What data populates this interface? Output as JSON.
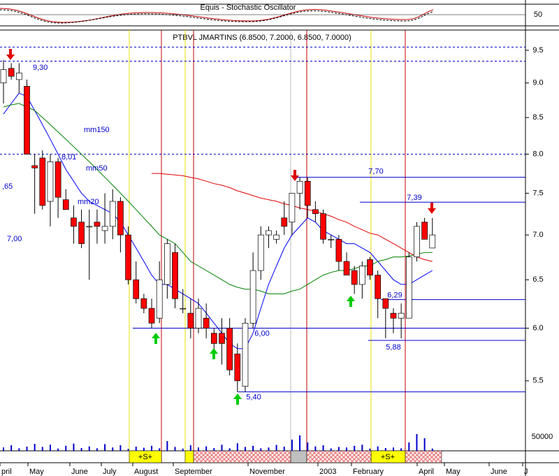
{
  "chart_data": {
    "type": "candlestick",
    "log": true,
    "title": "PTBVL JMARTINS (6.8500, 7.2000, 6.8500, 7.0000)",
    "top_title": "Equis - Stochastic Oscillator",
    "top_tick": "50",
    "ylim": [
      5.16,
      9.8
    ],
    "yticks": [
      5.5,
      {
        "value": 6,
        "label": "6.0"
      },
      6.5,
      {
        "value": 7,
        "label": "7.0"
      },
      7.5,
      {
        "value": 8,
        "label": "8.0"
      },
      8.5,
      {
        "value": 9,
        "label": "9.0"
      },
      9.5
    ],
    "open": [
      9.0,
      9.22,
      9.05,
      8.95,
      7.85,
      7.95,
      7.4,
      7.9,
      7.42,
      7.2,
      7.15,
      7.1,
      7.15,
      7.05,
      7.1,
      7.4,
      7.0,
      6.5,
      6.3,
      6.2,
      6.1,
      6.45,
      6.8,
      6.2,
      6.15,
      6.0,
      6.1,
      5.95,
      5.95,
      6.0,
      5.75,
      5.45,
      6.05,
      6.6,
      7.0,
      6.95,
      7.2,
      7.15,
      7.5,
      7.65,
      7.3,
      7.25,
      6.95,
      6.95,
      6.7,
      6.6,
      6.45,
      6.72,
      6.55,
      6.3,
      6.15,
      6.1,
      6.1,
      6.75,
      7.15,
      6.85
    ],
    "high": [
      9.35,
      9.3,
      9.3,
      9.05,
      8.0,
      8.05,
      8.0,
      7.95,
      7.55,
      7.35,
      7.3,
      7.3,
      7.3,
      7.5,
      7.55,
      7.45,
      7.1,
      6.7,
      6.35,
      6.3,
      6.7,
      6.95,
      6.9,
      6.4,
      6.3,
      6.3,
      6.25,
      6.0,
      6.1,
      6.1,
      5.85,
      6.1,
      6.8,
      7.1,
      7.1,
      7.05,
      7.4,
      7.5,
      7.7,
      7.7,
      7.4,
      7.3,
      7.0,
      7.0,
      6.8,
      6.65,
      6.7,
      6.75,
      6.6,
      6.3,
      6.2,
      6.25,
      6.8,
      7.15,
      7.2,
      7.2
    ],
    "low": [
      8.7,
      9.05,
      8.85,
      8.0,
      7.25,
      7.3,
      7.1,
      7.2,
      7.3,
      6.9,
      6.85,
      6.5,
      6.9,
      6.9,
      6.95,
      6.8,
      6.45,
      6.25,
      6.15,
      6.0,
      6.05,
      6.3,
      6.2,
      6.15,
      5.9,
      5.95,
      5.9,
      5.8,
      5.65,
      5.55,
      5.4,
      5.4,
      6.0,
      6.5,
      6.85,
      6.9,
      7.0,
      7.0,
      7.3,
      7.2,
      7.15,
      6.9,
      6.85,
      6.6,
      6.55,
      6.35,
      6.3,
      6.5,
      6.1,
      5.9,
      5.95,
      5.9,
      6.1,
      6.7,
      6.95,
      6.85
    ],
    "close": [
      9.2,
      9.1,
      9.15,
      8.0,
      7.82,
      7.35,
      7.9,
      7.45,
      7.3,
      7.1,
      6.9,
      7.1,
      7.1,
      7.1,
      7.4,
      7.0,
      6.5,
      6.3,
      6.2,
      6.05,
      6.5,
      6.9,
      6.3,
      6.2,
      6.0,
      6.2,
      6.0,
      5.85,
      5.85,
      5.6,
      5.5,
      6.05,
      6.6,
      7.0,
      7.05,
      7.0,
      7.1,
      7.5,
      7.65,
      7.35,
      7.25,
      6.95,
      6.95,
      6.7,
      6.55,
      6.45,
      6.65,
      6.55,
      6.3,
      6.2,
      6.1,
      6.15,
      6.75,
      7.1,
      6.95,
      7.0
    ],
    "up_color": "#ffffff",
    "down_color": "#ff0000",
    "series": [
      {
        "name": "mm20",
        "color": "#0000ff",
        "values": [
          8.55,
          8.7,
          8.85,
          8.8,
          8.6,
          8.4,
          8.2,
          8.0,
          7.8,
          7.65,
          7.5,
          7.4,
          7.35,
          7.3,
          7.25,
          7.15,
          7.0,
          6.85,
          6.7,
          6.55,
          6.45,
          6.45,
          6.4,
          6.35,
          6.3,
          6.25,
          6.15,
          6.05,
          5.95,
          5.85,
          5.8,
          5.8,
          5.95,
          6.2,
          6.45,
          6.65,
          6.85,
          7.0,
          7.1,
          7.2,
          7.15,
          7.05,
          7.0,
          6.95,
          6.9,
          6.9,
          6.85,
          6.8,
          6.7,
          6.6,
          6.5,
          6.45,
          6.45,
          6.5,
          6.55,
          6.6
        ]
      },
      {
        "name": "mm50",
        "color": "#008000",
        "values": [
          8.65,
          8.68,
          8.7,
          8.65,
          8.6,
          8.5,
          8.4,
          8.3,
          8.2,
          8.1,
          8.0,
          7.9,
          7.8,
          7.7,
          7.6,
          7.5,
          7.4,
          7.3,
          7.2,
          7.1,
          7.0,
          6.95,
          6.9,
          6.8,
          6.7,
          6.65,
          6.6,
          6.55,
          6.5,
          6.45,
          6.42,
          6.4,
          6.4,
          6.38,
          6.35,
          6.35,
          6.35,
          6.38,
          6.4,
          6.45,
          6.5,
          6.55,
          6.58,
          6.6,
          6.6,
          6.62,
          6.65,
          6.65,
          6.7,
          6.72,
          6.75,
          6.75,
          6.76,
          6.78,
          6.8,
          6.8
        ]
      },
      {
        "name": "mm150",
        "color": "#e00000",
        "values": [
          null,
          null,
          null,
          null,
          null,
          null,
          null,
          null,
          null,
          null,
          null,
          null,
          null,
          null,
          null,
          null,
          null,
          null,
          null,
          7.75,
          7.75,
          7.74,
          7.73,
          7.72,
          7.7,
          7.68,
          7.65,
          7.62,
          7.6,
          7.57,
          7.53,
          7.5,
          7.47,
          7.44,
          7.42,
          7.4,
          7.37,
          7.35,
          7.32,
          7.3,
          7.28,
          7.25,
          7.22,
          7.18,
          7.15,
          7.1,
          7.06,
          7.02,
          7.0,
          6.95,
          6.9,
          6.85,
          6.8,
          6.75,
          6.72,
          6.7
        ]
      }
    ],
    "annotations": [
      "9,30",
      "8,01",
      ",65",
      "7,00"
    ],
    "levels": [
      {
        "value": 7.7,
        "label": "7,70"
      },
      {
        "value": 7.39,
        "label": "7,39"
      },
      {
        "value": 6.29,
        "label": "6,29"
      },
      {
        "value": 6.0,
        "label": "6,00"
      },
      {
        "value": 5.88,
        "label": "5,88"
      },
      {
        "value": 5.4,
        "label": "5,40"
      }
    ],
    "dotted_levels": [
      9.55,
      9.33,
      8.0
    ],
    "volume": [
      12000,
      20000,
      9000,
      15000,
      25000,
      14000,
      22000,
      8000,
      18000,
      26000,
      10000,
      16000,
      9000,
      24000,
      12000,
      20000,
      7000,
      15000,
      11000,
      18000,
      9000,
      35000,
      14000,
      8000,
      20000,
      12000,
      16000,
      10000,
      22000,
      9000,
      27000,
      14000,
      18000,
      9000,
      12000,
      21000,
      15000,
      40000,
      55000,
      30000,
      16000,
      20000,
      9000,
      14000,
      12000,
      18000,
      22000,
      8000,
      16000,
      10000,
      12000,
      9000,
      30000,
      60000,
      45000,
      8000
    ],
    "vcolor": "#0000cc",
    "vlim": [
      0,
      112500
    ],
    "vticks": [
      50000
    ],
    "months": [
      "pril",
      "May",
      "June",
      "July",
      "August",
      "September",
      "November",
      "2003",
      "February",
      "April",
      "May",
      "June",
      "J"
    ],
    "band_label": "+S+"
  }
}
